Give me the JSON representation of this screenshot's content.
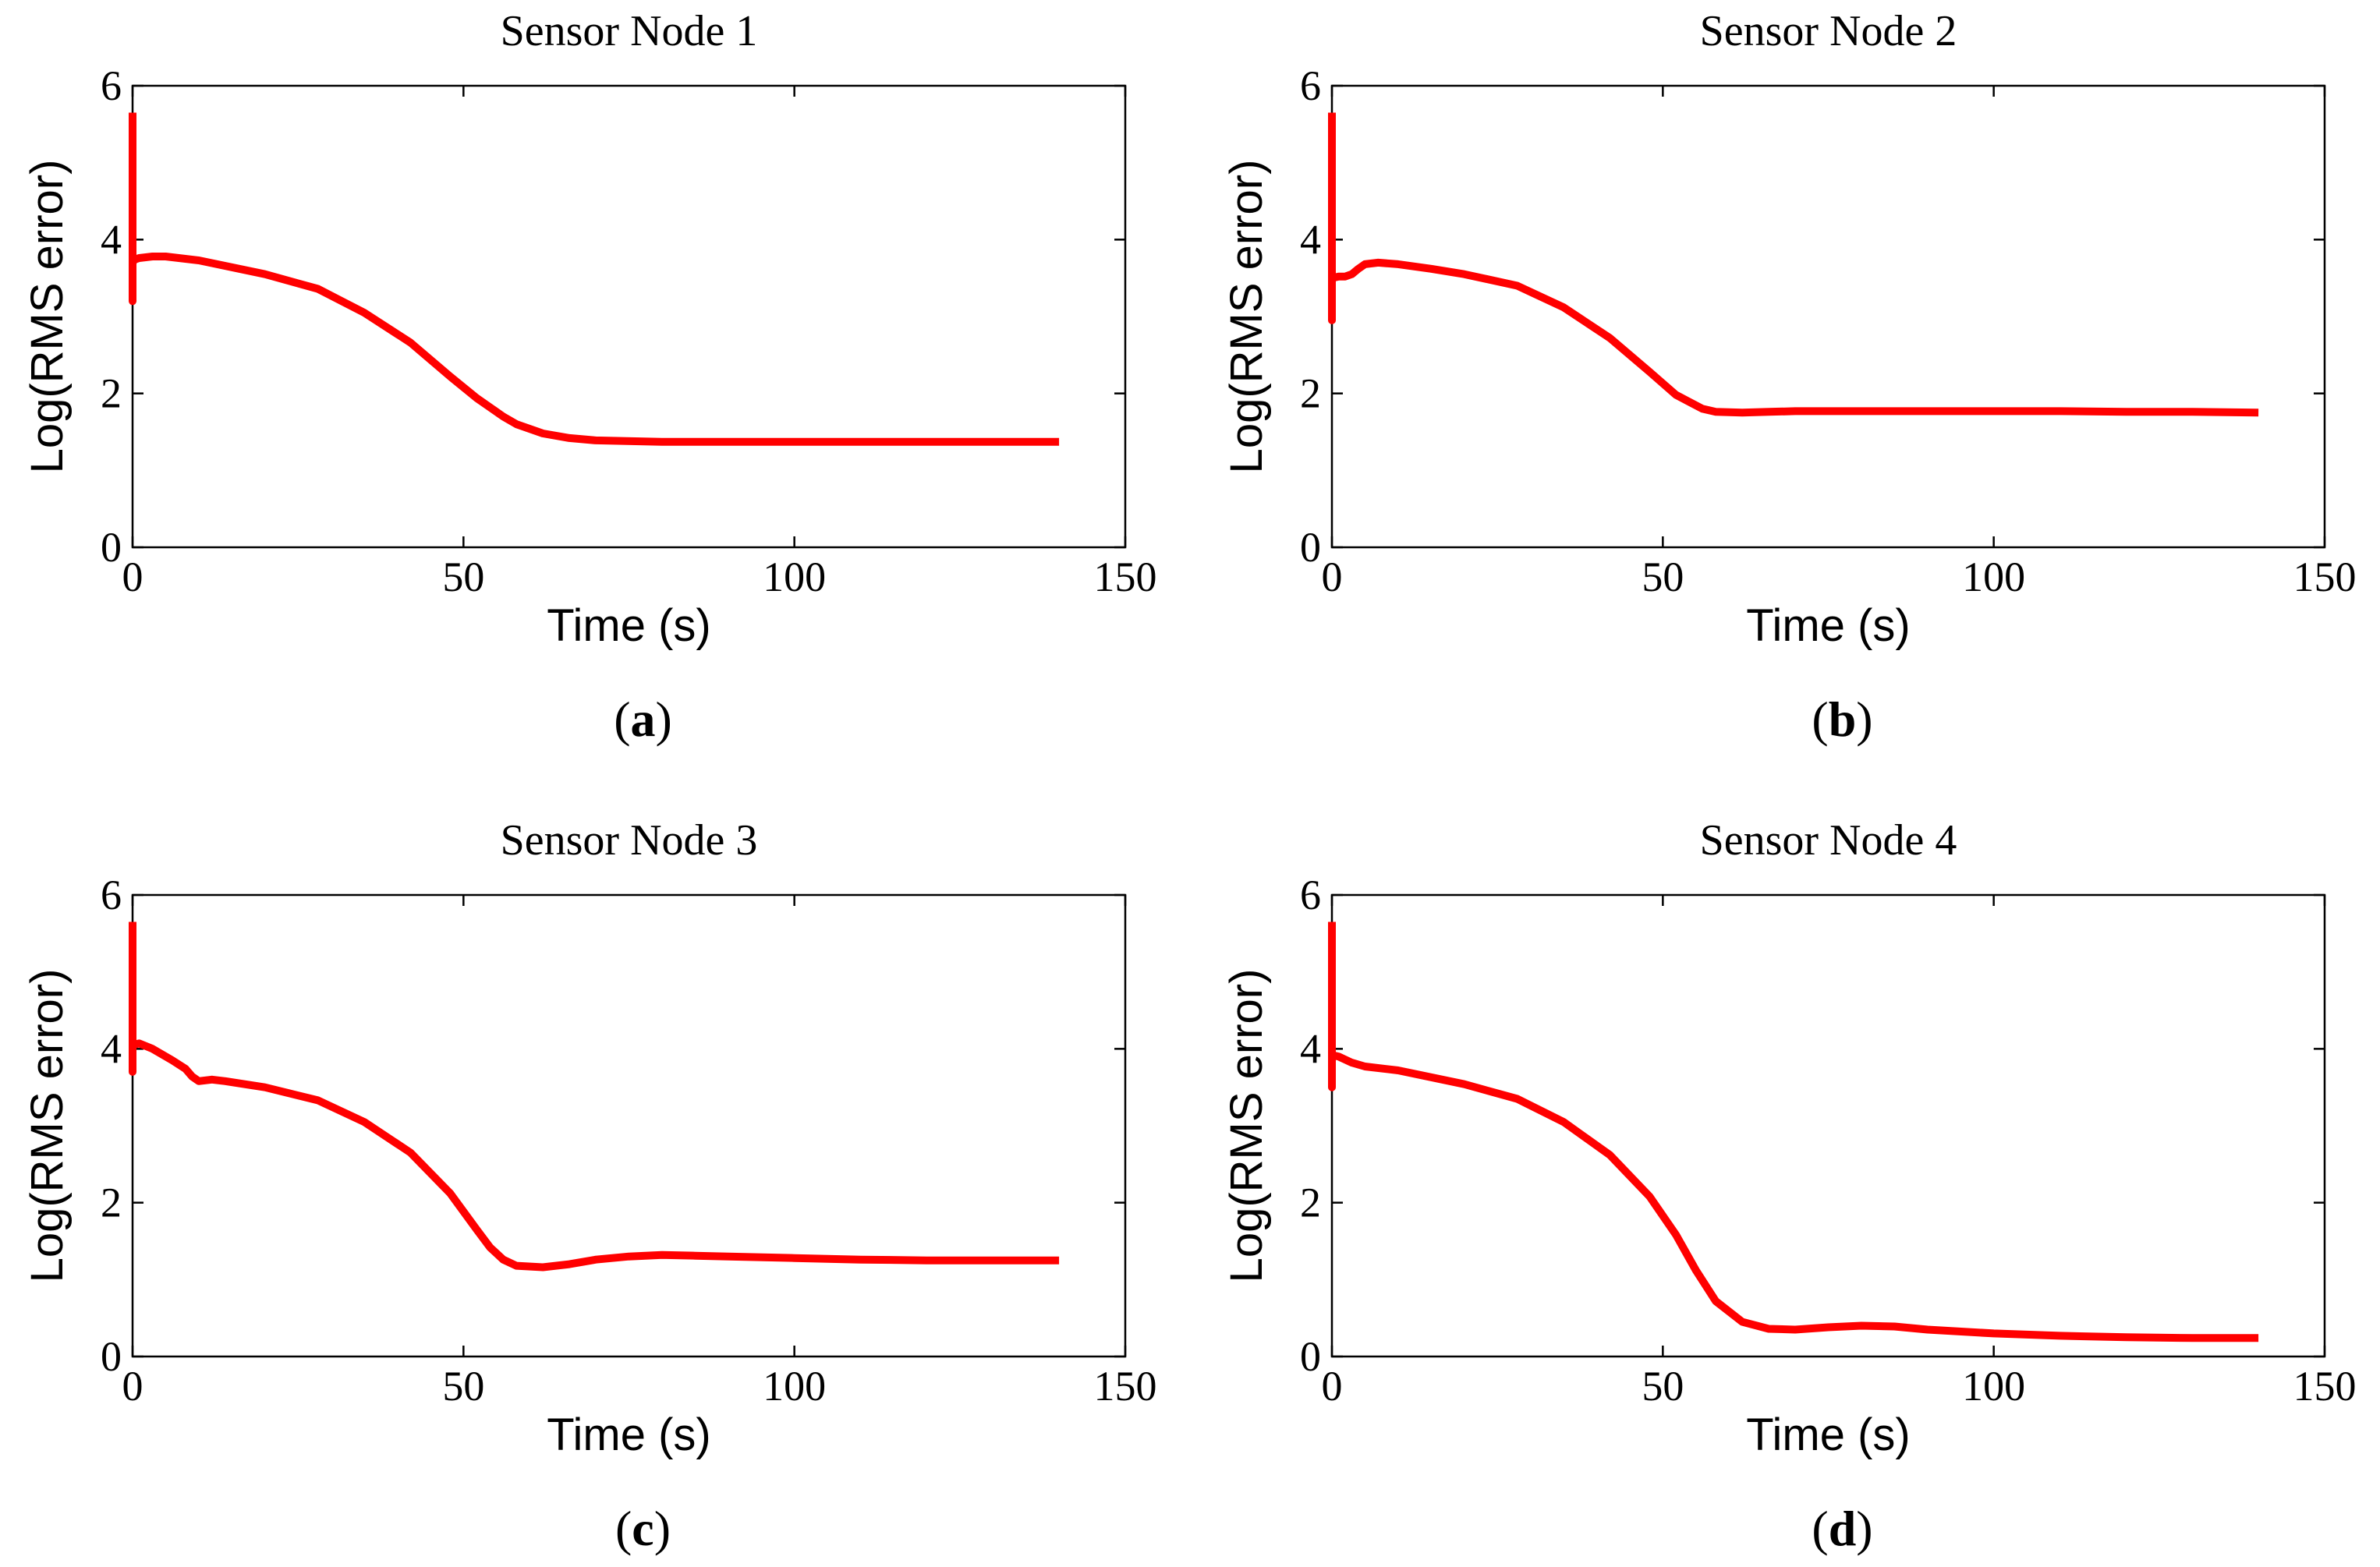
{
  "chart_data": [
    {
      "type": "line",
      "title": "Sensor Node 1",
      "xlabel": "Time (s)",
      "ylabel": "Log(RMS error)",
      "caption": "a",
      "xlim": [
        0,
        150
      ],
      "ylim": [
        0,
        6
      ],
      "xticks": [
        0,
        50,
        100,
        150
      ],
      "yticks": [
        0,
        2,
        4,
        6
      ],
      "grid": false,
      "color": "#ff0000",
      "series": [
        {
          "x": [
            0,
            0,
            0,
            0.3,
            1,
            3,
            5,
            10,
            20,
            28,
            35,
            42,
            48,
            52,
            56,
            58,
            62,
            66,
            70,
            80,
            90,
            100,
            110,
            120,
            130,
            140
          ],
          "y": [
            5.65,
            3.2,
            3.7,
            3.74,
            3.76,
            3.78,
            3.78,
            3.73,
            3.55,
            3.36,
            3.05,
            2.66,
            2.22,
            1.94,
            1.7,
            1.6,
            1.48,
            1.42,
            1.39,
            1.37,
            1.37,
            1.37,
            1.37,
            1.37,
            1.37,
            1.37
          ]
        }
      ]
    },
    {
      "type": "line",
      "title": "Sensor Node 2",
      "xlabel": "Time (s)",
      "ylabel": "Log(RMS error)",
      "caption": "b",
      "xlim": [
        0,
        150
      ],
      "ylim": [
        0,
        6
      ],
      "xticks": [
        0,
        50,
        100,
        150
      ],
      "yticks": [
        0,
        2,
        4,
        6
      ],
      "grid": false,
      "color": "#ff0000",
      "series": [
        {
          "x": [
            0,
            0,
            0,
            1,
            2,
            3,
            4,
            5,
            7,
            10,
            15,
            20,
            28,
            35,
            42,
            48,
            52,
            56,
            58,
            62,
            66,
            70,
            80,
            90,
            100,
            110,
            120,
            130,
            140
          ],
          "y": [
            5.65,
            2.95,
            3.5,
            3.52,
            3.52,
            3.55,
            3.62,
            3.68,
            3.7,
            3.68,
            3.62,
            3.55,
            3.4,
            3.12,
            2.72,
            2.28,
            1.98,
            1.8,
            1.76,
            1.75,
            1.76,
            1.77,
            1.77,
            1.77,
            1.77,
            1.77,
            1.76,
            1.76,
            1.75
          ]
        }
      ]
    },
    {
      "type": "line",
      "title": "Sensor Node 3",
      "xlabel": "Time (s)",
      "ylabel": "Log(RMS error)",
      "caption": "c",
      "xlim": [
        0,
        150
      ],
      "ylim": [
        0,
        6
      ],
      "xticks": [
        0,
        50,
        100,
        150
      ],
      "yticks": [
        0,
        2,
        4,
        6
      ],
      "grid": false,
      "color": "#ff0000",
      "series": [
        {
          "x": [
            0,
            0,
            0,
            1,
            3,
            6,
            8,
            9,
            10,
            12,
            14,
            20,
            28,
            35,
            42,
            48,
            52,
            54,
            56,
            58,
            62,
            66,
            70,
            75,
            80,
            85,
            90,
            100,
            110,
            120,
            130,
            140
          ],
          "y": [
            5.65,
            3.7,
            4.05,
            4.07,
            4.0,
            3.85,
            3.74,
            3.64,
            3.58,
            3.6,
            3.58,
            3.5,
            3.33,
            3.05,
            2.65,
            2.12,
            1.65,
            1.42,
            1.26,
            1.18,
            1.16,
            1.2,
            1.26,
            1.3,
            1.32,
            1.31,
            1.3,
            1.28,
            1.26,
            1.25,
            1.25,
            1.25
          ]
        }
      ]
    },
    {
      "type": "line",
      "title": "Sensor Node 4",
      "xlabel": "Time (s)",
      "ylabel": "Log(RMS error)",
      "caption": "d",
      "xlim": [
        0,
        150
      ],
      "ylim": [
        0,
        6
      ],
      "xticks": [
        0,
        50,
        100,
        150
      ],
      "yticks": [
        0,
        2,
        4,
        6
      ],
      "grid": false,
      "color": "#ff0000",
      "series": [
        {
          "x": [
            0,
            0,
            0,
            1,
            3,
            5,
            10,
            20,
            28,
            35,
            42,
            48,
            52,
            55,
            58,
            62,
            66,
            70,
            75,
            80,
            85,
            90,
            100,
            110,
            120,
            130,
            140
          ],
          "y": [
            5.65,
            3.5,
            3.92,
            3.9,
            3.82,
            3.77,
            3.72,
            3.54,
            3.35,
            3.05,
            2.62,
            2.08,
            1.58,
            1.12,
            0.72,
            0.45,
            0.36,
            0.35,
            0.38,
            0.4,
            0.39,
            0.35,
            0.3,
            0.27,
            0.25,
            0.24,
            0.24
          ]
        }
      ]
    }
  ]
}
